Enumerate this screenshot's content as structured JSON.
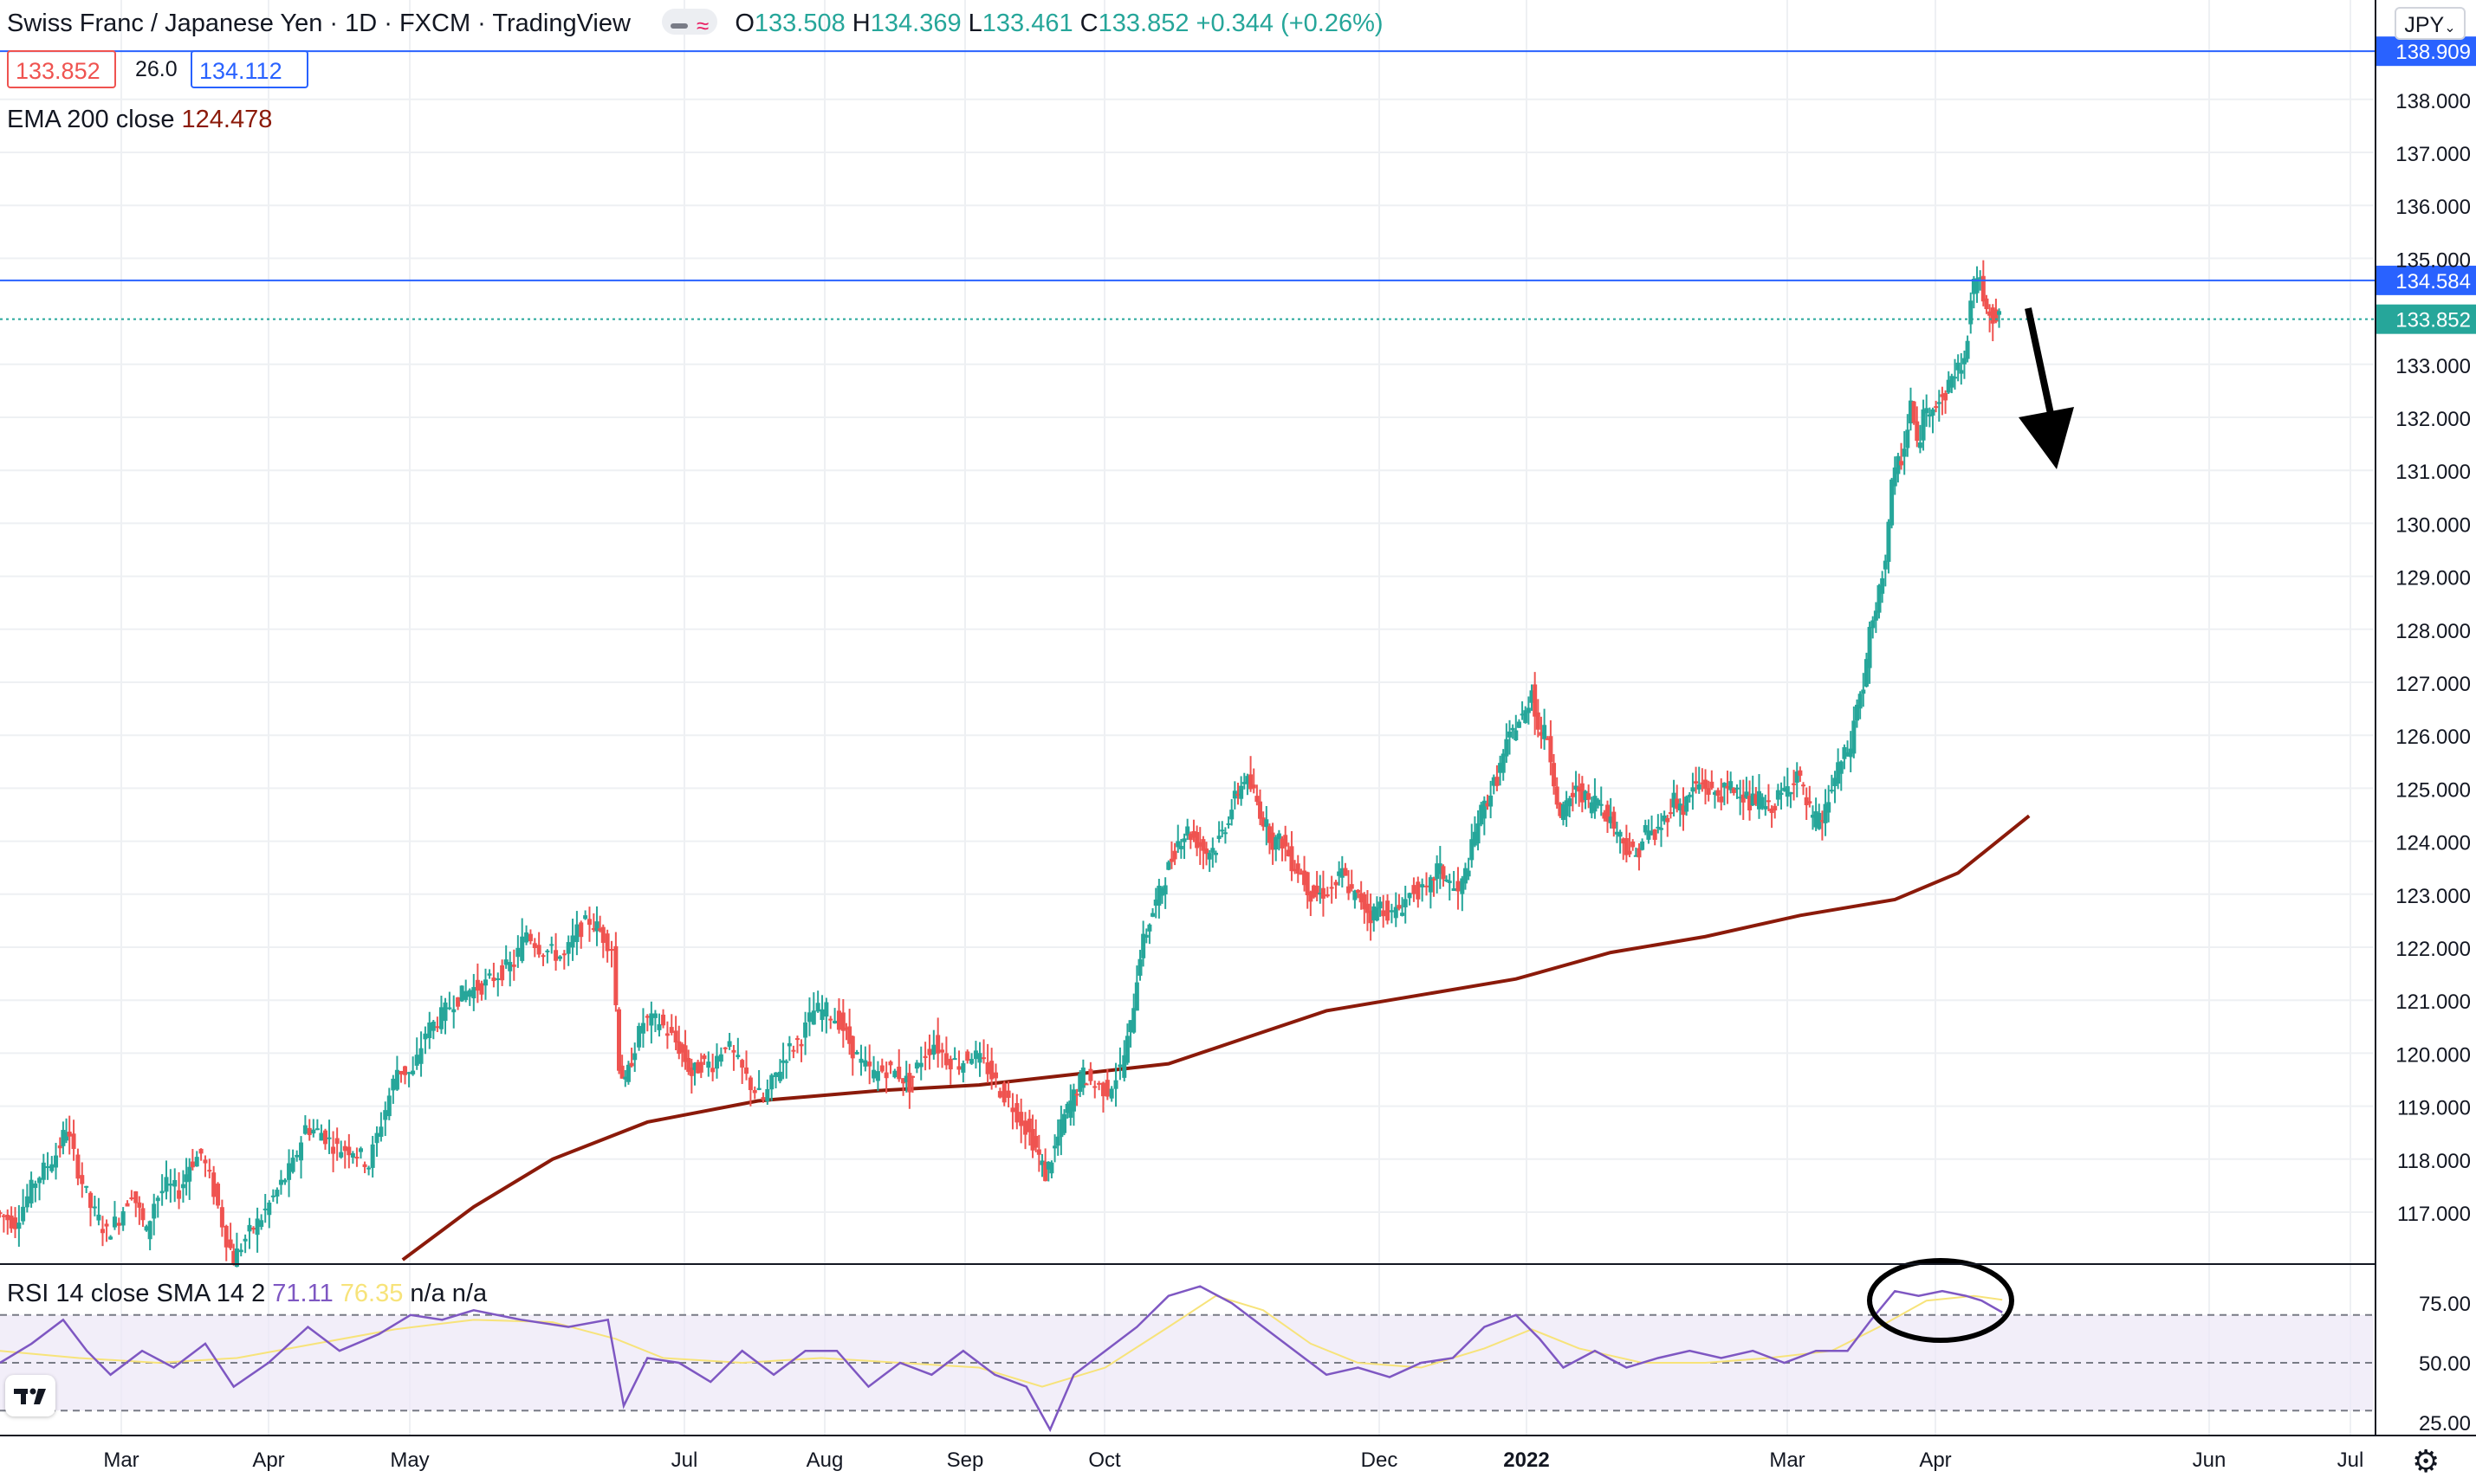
{
  "header": {
    "symbol_title": "Swiss Franc / Japanese Yen · 1D · FXCM · TradingView",
    "open_label": "O",
    "open": "133.508",
    "high_label": "H",
    "high": "134.369",
    "low_label": "L",
    "low": "133.461",
    "close_label": "C",
    "close": "133.852",
    "change": "+0.344 (+0.26%)"
  },
  "quote": {
    "bid": "133.852",
    "spread": "26.0",
    "ask": "134.112"
  },
  "ema": {
    "label": "EMA 200 close",
    "value": "124.478"
  },
  "rsi_legend": {
    "label": "RSI 14 close SMA 14 2",
    "rsi_value": "71.11",
    "sma_value": "76.35",
    "na1": "n/a",
    "na2": "n/a"
  },
  "currency_selector": "JPY",
  "colors": {
    "up": "#26a69a",
    "down": "#ef5350",
    "ema": "#8b1a0a",
    "hline": "#2962ff",
    "rsi": "#7e57c2",
    "rsi_sma": "#f7e37a",
    "annotation": "#000000"
  },
  "chart_data": {
    "type": "candlestick",
    "title": "Swiss Franc / Japanese Yen · 1D · FXCM · TradingView",
    "x_ticks": [
      "Mar",
      "Apr",
      "May",
      "Jul",
      "Aug",
      "Sep",
      "Oct",
      "Dec",
      "2022",
      "Mar",
      "Apr",
      "Jun",
      "Jul"
    ],
    "y_ticks": [
      "117.000",
      "118.000",
      "119.000",
      "120.000",
      "121.000",
      "122.000",
      "123.000",
      "124.000",
      "125.000",
      "126.000",
      "127.000",
      "128.000",
      "129.000",
      "130.000",
      "131.000",
      "132.000",
      "133.000",
      "135.000",
      "136.000",
      "137.000",
      "138.000"
    ],
    "ylim": [
      116.1,
      139.6
    ],
    "price_labels": [
      {
        "text": "138.909",
        "value": 138.909,
        "kind": "hline"
      },
      {
        "text": "134.584",
        "value": 134.584,
        "kind": "hline"
      },
      {
        "text": "133.852",
        "value": 133.852,
        "kind": "last"
      }
    ],
    "price_path": [
      [
        0,
        117.0
      ],
      [
        12,
        116.8
      ],
      [
        25,
        117.6
      ],
      [
        38,
        118.1
      ],
      [
        44,
        118.6
      ],
      [
        52,
        117.8
      ],
      [
        60,
        117.1
      ],
      [
        70,
        116.6
      ],
      [
        78,
        116.9
      ],
      [
        86,
        117.4
      ],
      [
        95,
        116.6
      ],
      [
        100,
        117.2
      ],
      [
        108,
        117.5
      ],
      [
        116,
        117.4
      ],
      [
        122,
        117.9
      ],
      [
        130,
        118.1
      ],
      [
        138,
        117.4
      ],
      [
        146,
        116.5
      ],
      [
        150,
        116.1
      ],
      [
        158,
        116.5
      ],
      [
        168,
        116.9
      ],
      [
        178,
        117.4
      ],
      [
        188,
        117.9
      ],
      [
        196,
        118.6
      ],
      [
        206,
        118.5
      ],
      [
        216,
        118.2
      ],
      [
        226,
        118.2
      ],
      [
        236,
        117.9
      ],
      [
        244,
        118.7
      ],
      [
        254,
        119.7
      ],
      [
        264,
        119.6
      ],
      [
        272,
        120.4
      ],
      [
        282,
        120.7
      ],
      [
        290,
        121.0
      ],
      [
        300,
        121.2
      ],
      [
        310,
        121.3
      ],
      [
        318,
        121.5
      ],
      [
        328,
        121.7
      ],
      [
        336,
        122.3
      ],
      [
        344,
        122.0
      ],
      [
        352,
        121.9
      ],
      [
        360,
        121.8
      ],
      [
        368,
        122.3
      ],
      [
        376,
        122.5
      ],
      [
        382,
        122.3
      ],
      [
        390,
        122.0
      ],
      [
        394,
        119.8
      ],
      [
        398,
        119.4
      ],
      [
        402,
        119.9
      ],
      [
        410,
        120.6
      ],
      [
        420,
        120.6
      ],
      [
        428,
        120.3
      ],
      [
        434,
        120.0
      ],
      [
        440,
        119.6
      ],
      [
        446,
        119.8
      ],
      [
        454,
        119.8
      ],
      [
        462,
        120.2
      ],
      [
        470,
        119.8
      ],
      [
        478,
        119.4
      ],
      [
        486,
        119.1
      ],
      [
        494,
        119.6
      ],
      [
        500,
        120.0
      ],
      [
        510,
        120.3
      ],
      [
        518,
        120.8
      ],
      [
        526,
        120.8
      ],
      [
        534,
        120.6
      ],
      [
        540,
        120.2
      ],
      [
        548,
        119.8
      ],
      [
        556,
        119.6
      ],
      [
        564,
        119.7
      ],
      [
        572,
        119.6
      ],
      [
        578,
        119.4
      ],
      [
        586,
        119.9
      ],
      [
        594,
        120.2
      ],
      [
        602,
        119.9
      ],
      [
        610,
        119.8
      ],
      [
        618,
        120.0
      ],
      [
        628,
        119.7
      ],
      [
        636,
        119.3
      ],
      [
        644,
        119.0
      ],
      [
        652,
        118.6
      ],
      [
        658,
        118.2
      ],
      [
        664,
        117.7
      ],
      [
        670,
        118.2
      ],
      [
        676,
        118.8
      ],
      [
        682,
        119.2
      ],
      [
        688,
        119.6
      ],
      [
        696,
        119.4
      ],
      [
        704,
        119.3
      ],
      [
        712,
        119.7
      ],
      [
        718,
        120.5
      ],
      [
        724,
        121.9
      ],
      [
        730,
        122.5
      ],
      [
        736,
        123.0
      ],
      [
        742,
        123.5
      ],
      [
        748,
        124.0
      ],
      [
        754,
        124.2
      ],
      [
        760,
        124.0
      ],
      [
        766,
        123.8
      ],
      [
        772,
        123.9
      ],
      [
        778,
        124.3
      ],
      [
        784,
        124.8
      ],
      [
        790,
        125.2
      ],
      [
        796,
        124.9
      ],
      [
        802,
        124.4
      ],
      [
        808,
        124.0
      ],
      [
        814,
        124.0
      ],
      [
        820,
        123.6
      ],
      [
        826,
        123.4
      ],
      [
        832,
        123.0
      ],
      [
        838,
        123.0
      ],
      [
        846,
        123.1
      ],
      [
        852,
        123.4
      ],
      [
        858,
        123.0
      ],
      [
        864,
        122.9
      ],
      [
        870,
        122.6
      ],
      [
        876,
        122.8
      ],
      [
        884,
        122.6
      ],
      [
        890,
        122.8
      ],
      [
        898,
        123.1
      ],
      [
        906,
        123.0
      ],
      [
        912,
        123.5
      ],
      [
        918,
        123.3
      ],
      [
        926,
        123.0
      ],
      [
        932,
        123.6
      ],
      [
        938,
        124.4
      ],
      [
        944,
        124.8
      ],
      [
        950,
        125.2
      ],
      [
        956,
        125.8
      ],
      [
        962,
        126.2
      ],
      [
        968,
        126.4
      ],
      [
        972,
        126.9
      ],
      [
        976,
        126.1
      ],
      [
        982,
        126.0
      ],
      [
        986,
        125.2
      ],
      [
        990,
        124.4
      ],
      [
        996,
        124.8
      ],
      [
        1002,
        125.0
      ],
      [
        1008,
        124.7
      ],
      [
        1014,
        124.8
      ],
      [
        1020,
        124.5
      ],
      [
        1026,
        124.2
      ],
      [
        1032,
        123.9
      ],
      [
        1038,
        123.7
      ],
      [
        1044,
        124.2
      ],
      [
        1050,
        124.1
      ],
      [
        1056,
        124.4
      ],
      [
        1062,
        124.8
      ],
      [
        1068,
        124.6
      ],
      [
        1074,
        125.0
      ],
      [
        1080,
        125.1
      ],
      [
        1086,
        124.9
      ],
      [
        1092,
        124.9
      ],
      [
        1098,
        125.0
      ],
      [
        1104,
        125.0
      ],
      [
        1110,
        124.7
      ],
      [
        1116,
        124.8
      ],
      [
        1122,
        124.6
      ],
      [
        1128,
        124.8
      ],
      [
        1134,
        125.0
      ],
      [
        1140,
        125.3
      ],
      [
        1146,
        124.7
      ],
      [
        1150,
        124.4
      ],
      [
        1156,
        124.4
      ],
      [
        1162,
        125.0
      ],
      [
        1168,
        125.5
      ],
      [
        1174,
        125.8
      ],
      [
        1178,
        126.6
      ],
      [
        1182,
        126.9
      ],
      [
        1186,
        127.9
      ],
      [
        1190,
        128.3
      ],
      [
        1196,
        129.4
      ],
      [
        1200,
        130.7
      ],
      [
        1204,
        131.1
      ],
      [
        1208,
        131.4
      ],
      [
        1212,
        132.3
      ],
      [
        1216,
        131.4
      ],
      [
        1220,
        132.0
      ],
      [
        1226,
        132.3
      ],
      [
        1232,
        132.3
      ],
      [
        1236,
        132.6
      ],
      [
        1240,
        132.9
      ],
      [
        1246,
        133.0
      ],
      [
        1250,
        134.2
      ],
      [
        1254,
        134.7
      ],
      [
        1258,
        134.3
      ],
      [
        1264,
        133.9
      ],
      [
        1268,
        133.85
      ]
    ],
    "ema200": [
      [
        255,
        116.1
      ],
      [
        300,
        117.1
      ],
      [
        350,
        118.0
      ],
      [
        410,
        118.7
      ],
      [
        480,
        119.1
      ],
      [
        560,
        119.3
      ],
      [
        620,
        119.4
      ],
      [
        680,
        119.6
      ],
      [
        740,
        119.8
      ],
      [
        790,
        120.3
      ],
      [
        840,
        120.8
      ],
      [
        900,
        121.1
      ],
      [
        960,
        121.4
      ],
      [
        1020,
        121.9
      ],
      [
        1080,
        122.2
      ],
      [
        1140,
        122.6
      ],
      [
        1200,
        122.9
      ],
      [
        1240,
        123.4
      ],
      [
        1285,
        124.478
      ]
    ],
    "rsi": {
      "ylim": [
        20,
        85
      ],
      "y_ticks": [
        "75.00",
        "50.00",
        "25.00"
      ],
      "band": [
        30,
        70
      ],
      "rsi_values": [
        [
          0,
          50
        ],
        [
          20,
          58
        ],
        [
          40,
          68
        ],
        [
          55,
          55
        ],
        [
          70,
          45
        ],
        [
          90,
          55
        ],
        [
          110,
          48
        ],
        [
          130,
          58
        ],
        [
          148,
          40
        ],
        [
          170,
          50
        ],
        [
          195,
          65
        ],
        [
          215,
          55
        ],
        [
          240,
          62
        ],
        [
          260,
          70
        ],
        [
          280,
          68
        ],
        [
          300,
          72
        ],
        [
          330,
          68
        ],
        [
          360,
          65
        ],
        [
          385,
          68
        ],
        [
          395,
          32
        ],
        [
          410,
          52
        ],
        [
          430,
          50
        ],
        [
          450,
          42
        ],
        [
          470,
          55
        ],
        [
          490,
          45
        ],
        [
          510,
          55
        ],
        [
          530,
          55
        ],
        [
          550,
          40
        ],
        [
          570,
          50
        ],
        [
          590,
          45
        ],
        [
          610,
          55
        ],
        [
          630,
          45
        ],
        [
          650,
          40
        ],
        [
          665,
          22
        ],
        [
          680,
          45
        ],
        [
          700,
          55
        ],
        [
          720,
          65
        ],
        [
          740,
          78
        ],
        [
          760,
          82
        ],
        [
          780,
          75
        ],
        [
          800,
          65
        ],
        [
          820,
          55
        ],
        [
          840,
          45
        ],
        [
          860,
          48
        ],
        [
          880,
          44
        ],
        [
          900,
          50
        ],
        [
          920,
          52
        ],
        [
          940,
          65
        ],
        [
          960,
          70
        ],
        [
          975,
          60
        ],
        [
          990,
          48
        ],
        [
          1010,
          55
        ],
        [
          1030,
          48
        ],
        [
          1050,
          52
        ],
        [
          1070,
          55
        ],
        [
          1090,
          52
        ],
        [
          1110,
          55
        ],
        [
          1130,
          50
        ],
        [
          1150,
          55
        ],
        [
          1170,
          55
        ],
        [
          1185,
          68
        ],
        [
          1200,
          80
        ],
        [
          1215,
          78
        ],
        [
          1230,
          80
        ],
        [
          1245,
          78
        ],
        [
          1255,
          76
        ],
        [
          1268,
          71.11
        ]
      ],
      "sma_values": [
        [
          0,
          55
        ],
        [
          50,
          52
        ],
        [
          100,
          50
        ],
        [
          150,
          52
        ],
        [
          200,
          58
        ],
        [
          250,
          64
        ],
        [
          300,
          68
        ],
        [
          350,
          67
        ],
        [
          390,
          60
        ],
        [
          420,
          52
        ],
        [
          470,
          50
        ],
        [
          520,
          52
        ],
        [
          570,
          50
        ],
        [
          620,
          48
        ],
        [
          660,
          40
        ],
        [
          700,
          48
        ],
        [
          740,
          65
        ],
        [
          770,
          78
        ],
        [
          800,
          72
        ],
        [
          830,
          58
        ],
        [
          860,
          50
        ],
        [
          900,
          48
        ],
        [
          940,
          56
        ],
        [
          970,
          64
        ],
        [
          1000,
          56
        ],
        [
          1040,
          50
        ],
        [
          1080,
          50
        ],
        [
          1120,
          52
        ],
        [
          1160,
          55
        ],
        [
          1190,
          65
        ],
        [
          1220,
          76
        ],
        [
          1250,
          78
        ],
        [
          1268,
          76.35
        ]
      ]
    }
  }
}
